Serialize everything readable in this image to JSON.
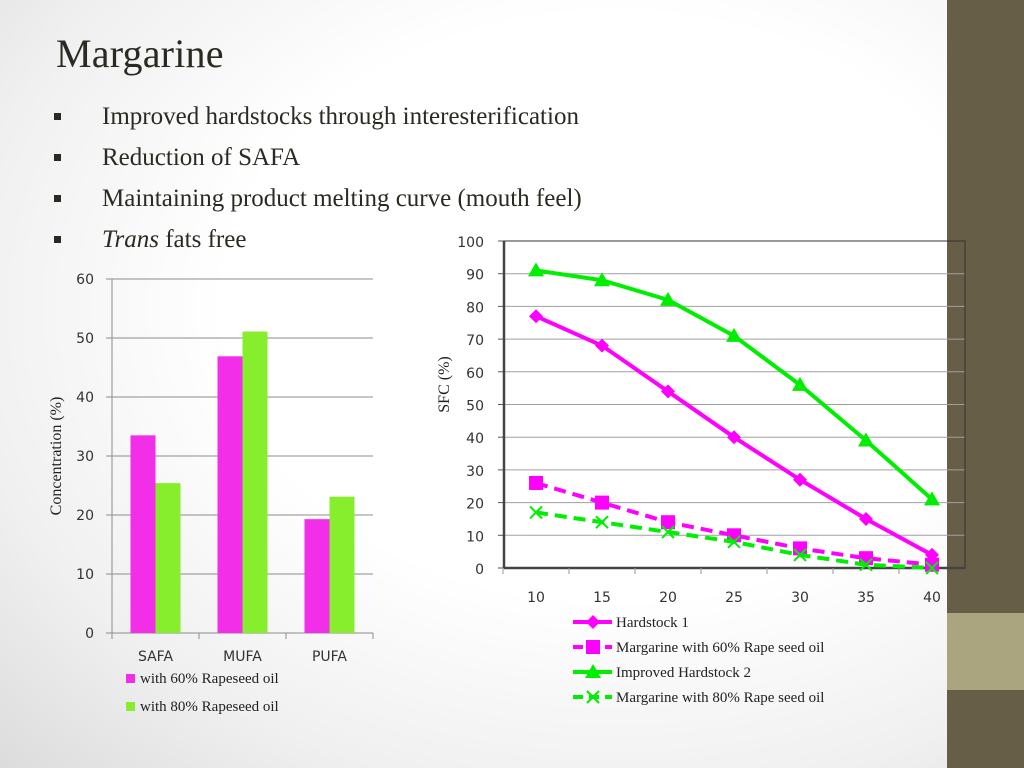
{
  "slide": {
    "title": "Margarine",
    "bullets": [
      {
        "italic": "",
        "text": "Improved hardstocks through interesterification"
      },
      {
        "italic": "",
        "text": "Reduction of SAFA"
      },
      {
        "italic": "",
        "text": "Maintaining product melting curve (mouth feel)"
      },
      {
        "italic": "Trans",
        "text": " fats free"
      }
    ],
    "colors": {
      "sidebar": "#665e46",
      "sidebar_accent": "#aba57f",
      "magenta": "#ff00ff",
      "green": "#00ee00",
      "bar_magenta": "#f22ee8",
      "bar_green": "#87ee2d"
    }
  },
  "chart_data": [
    {
      "type": "bar",
      "title": "",
      "xlabel": "",
      "ylabel": "Concentration (%)",
      "ylim": [
        0,
        60
      ],
      "yticks": [
        0,
        10,
        20,
        30,
        40,
        50,
        60
      ],
      "grid": true,
      "legend": "bottom",
      "categories": [
        "SAFA",
        "MUFA",
        "PUFA"
      ],
      "series": [
        {
          "name": "with 60% Rapeseed oil",
          "color": "#f22ee8",
          "values": [
            33.5,
            46.9,
            19.3
          ]
        },
        {
          "name": "with 80% Rapeseed oil",
          "color": "#87ee2d",
          "values": [
            25.4,
            51.1,
            23.1
          ]
        }
      ]
    },
    {
      "type": "line",
      "title": "",
      "xlabel": "",
      "ylabel": "SFC (%)",
      "ylim": [
        0,
        100
      ],
      "yticks": [
        0,
        10,
        20,
        30,
        40,
        50,
        60,
        70,
        80,
        90,
        100
      ],
      "grid": true,
      "legend": "bottom",
      "x": [
        10,
        15,
        20,
        25,
        30,
        35,
        40
      ],
      "series": [
        {
          "name": "Hardstock 1",
          "color": "#ff00ff",
          "dash": false,
          "marker": "diamond",
          "values": [
            77,
            68,
            54,
            40,
            27,
            15,
            4
          ]
        },
        {
          "name": "Margarine with 60% Rape seed oil",
          "color": "#ff00ff",
          "dash": true,
          "marker": "square",
          "values": [
            26,
            20,
            14,
            10,
            6,
            3,
            1
          ]
        },
        {
          "name": "Improved Hardstock 2",
          "color": "#00ee00",
          "dash": false,
          "marker": "triangle",
          "values": [
            91,
            88,
            82,
            71,
            56,
            39,
            21
          ]
        },
        {
          "name": "Margarine with 80% Rape seed oil",
          "color": "#00ee00",
          "dash": true,
          "marker": "x",
          "values": [
            17,
            14,
            11,
            8,
            4,
            1,
            0
          ]
        }
      ]
    }
  ]
}
